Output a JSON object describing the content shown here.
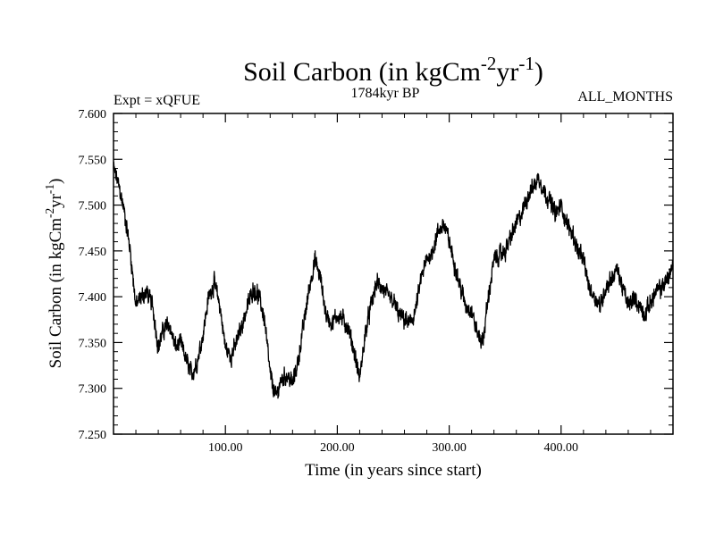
{
  "chart_data": {
    "type": "line",
    "title": {
      "base": "Soil Carbon (in kgCm",
      "exp1": "-2",
      "mid": "yr",
      "exp2": "-1",
      "end": ")"
    },
    "subtitle_left": "Expt = xQFUE",
    "subtitle_center": "1784kyr BP",
    "subtitle_right": "ALL_MONTHS",
    "xlabel": "Time (in years since start)",
    "ylabel": {
      "base": "Soil Carbon (in kgCm",
      "exp1": "-2",
      "mid": "yr",
      "exp2": "-1",
      "end": ")"
    },
    "xlim": [
      0,
      500
    ],
    "ylim": [
      7.25,
      7.6
    ],
    "x_ticks": [
      {
        "value": 100,
        "label": "100.00"
      },
      {
        "value": 200,
        "label": "200.00"
      },
      {
        "value": 300,
        "label": "300.00"
      },
      {
        "value": 400,
        "label": "400.00"
      }
    ],
    "y_ticks": [
      {
        "value": 7.25,
        "label": "7.250"
      },
      {
        "value": 7.3,
        "label": "7.300"
      },
      {
        "value": 7.35,
        "label": "7.350"
      },
      {
        "value": 7.4,
        "label": "7.400"
      },
      {
        "value": 7.45,
        "label": "7.450"
      },
      {
        "value": 7.5,
        "label": "7.500"
      },
      {
        "value": 7.55,
        "label": "7.550"
      },
      {
        "value": 7.6,
        "label": "7.600"
      }
    ],
    "series": [
      {
        "name": "Soil Carbon",
        "color": "#000000",
        "noise_amplitude": 0.012,
        "x": [
          0,
          5,
          10,
          15,
          20,
          25,
          30,
          35,
          40,
          45,
          50,
          55,
          60,
          65,
          70,
          75,
          80,
          85,
          90,
          95,
          100,
          105,
          110,
          115,
          120,
          125,
          130,
          135,
          140,
          145,
          150,
          155,
          160,
          165,
          170,
          175,
          180,
          185,
          190,
          195,
          200,
          205,
          210,
          215,
          220,
          225,
          230,
          235,
          240,
          245,
          250,
          255,
          260,
          265,
          270,
          275,
          280,
          285,
          290,
          295,
          300,
          305,
          310,
          315,
          320,
          325,
          330,
          335,
          340,
          345,
          350,
          355,
          360,
          365,
          370,
          375,
          380,
          385,
          390,
          395,
          400,
          405,
          410,
          415,
          420,
          425,
          430,
          435,
          440,
          445,
          450,
          455,
          460,
          465,
          470,
          475,
          480,
          485,
          490,
          495,
          500
        ],
        "values": [
          7.54,
          7.52,
          7.49,
          7.45,
          7.39,
          7.4,
          7.405,
          7.39,
          7.345,
          7.365,
          7.37,
          7.345,
          7.35,
          7.33,
          7.315,
          7.33,
          7.36,
          7.4,
          7.415,
          7.39,
          7.345,
          7.335,
          7.35,
          7.37,
          7.39,
          7.41,
          7.4,
          7.375,
          7.315,
          7.29,
          7.31,
          7.315,
          7.305,
          7.33,
          7.37,
          7.41,
          7.44,
          7.42,
          7.38,
          7.37,
          7.38,
          7.375,
          7.365,
          7.34,
          7.31,
          7.36,
          7.39,
          7.415,
          7.41,
          7.4,
          7.395,
          7.38,
          7.375,
          7.37,
          7.385,
          7.42,
          7.44,
          7.45,
          7.47,
          7.48,
          7.46,
          7.435,
          7.41,
          7.39,
          7.385,
          7.36,
          7.35,
          7.4,
          7.44,
          7.445,
          7.45,
          7.465,
          7.48,
          7.49,
          7.51,
          7.52,
          7.53,
          7.515,
          7.505,
          7.49,
          7.5,
          7.48,
          7.47,
          7.45,
          7.44,
          7.41,
          7.4,
          7.39,
          7.41,
          7.42,
          7.43,
          7.41,
          7.39,
          7.4,
          7.39,
          7.38,
          7.395,
          7.405,
          7.41,
          7.42,
          7.435
        ]
      }
    ]
  }
}
